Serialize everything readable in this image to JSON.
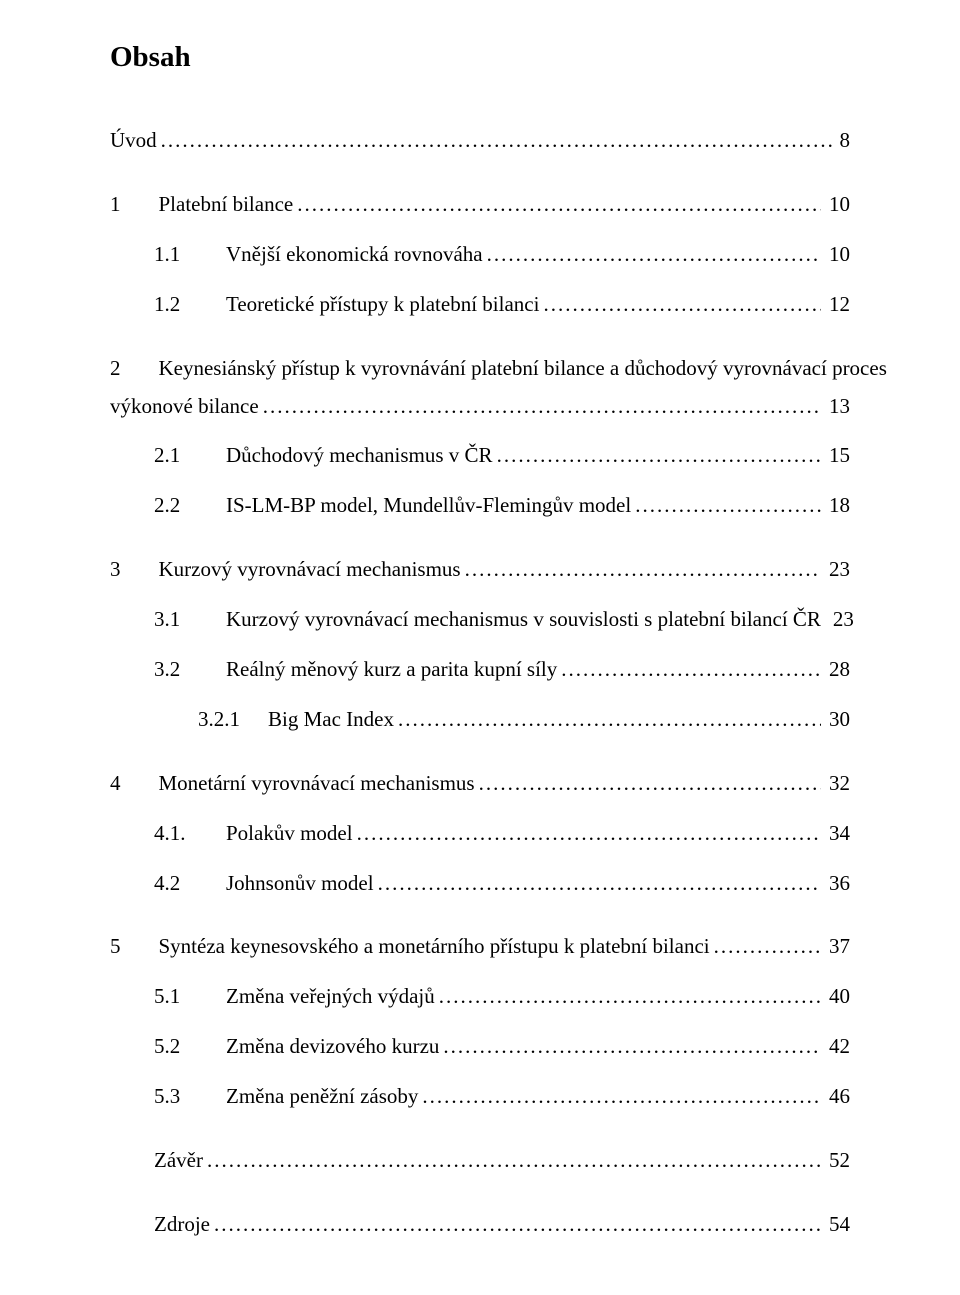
{
  "title": "Obsah",
  "entries": [
    {
      "type": "row",
      "indent": 0,
      "num": "",
      "label": "Úvod",
      "page": "8",
      "nonum": true
    },
    {
      "type": "spacer"
    },
    {
      "type": "row",
      "indent": 0,
      "num": "1",
      "label": "Platební bilance",
      "page": "10"
    },
    {
      "type": "row",
      "indent": 1,
      "num": "1.1",
      "label": "Vnější ekonomická rovnováha",
      "page": "10"
    },
    {
      "type": "row",
      "indent": 1,
      "num": "1.2",
      "label": "Teoretické přístupy k platební bilanci",
      "page": "12"
    },
    {
      "type": "spacer"
    },
    {
      "type": "wrap",
      "indent": 0,
      "num": "2",
      "label": "Keynesiánský přístup k vyrovnávání platební bilance a důchodový vyrovnávací proces"
    },
    {
      "type": "cont",
      "indent": 0,
      "label": "výkonové bilance",
      "page": "13"
    },
    {
      "type": "row",
      "indent": 1,
      "num": "2.1",
      "label": "Důchodový mechanismus v ČR",
      "page": "15"
    },
    {
      "type": "row",
      "indent": 1,
      "num": "2.2",
      "label": "IS-LM-BP model, Mundellův-Flemingův model",
      "page": "18"
    },
    {
      "type": "spacer"
    },
    {
      "type": "row",
      "indent": 0,
      "num": "3",
      "label": "Kurzový vyrovnávací mechanismus",
      "page": "23"
    },
    {
      "type": "row",
      "indent": 1,
      "num": "3.1",
      "label": "Kurzový vyrovnávací mechanismus v souvislosti s platební bilancí ČR",
      "page": "23"
    },
    {
      "type": "row",
      "indent": 1,
      "num": "3.2",
      "label": "Reálný měnový kurz a parita kupní síly",
      "page": "28"
    },
    {
      "type": "row",
      "indent": 2,
      "num": "3.2.1",
      "label": "Big Mac Index",
      "page": "30"
    },
    {
      "type": "spacer"
    },
    {
      "type": "row",
      "indent": 0,
      "num": "4",
      "label": "Monetární vyrovnávací mechanismus",
      "page": "32"
    },
    {
      "type": "row",
      "indent": 1,
      "num": "4.1.",
      "label": "Polakův model",
      "page": "34"
    },
    {
      "type": "row",
      "indent": 1,
      "num": "4.2",
      "label": "Johnsonův model",
      "page": "36"
    },
    {
      "type": "spacer"
    },
    {
      "type": "row",
      "indent": 0,
      "num": "5",
      "label": "Syntéza keynesovského a monetárního přístupu k platební bilanci",
      "page": "37"
    },
    {
      "type": "row",
      "indent": 1,
      "num": "5.1",
      "label": "Změna veřejných výdajů",
      "page": "40"
    },
    {
      "type": "row",
      "indent": 1,
      "num": "5.2",
      "label": "Změna  devizového kurzu",
      "page": "42"
    },
    {
      "type": "row",
      "indent": 1,
      "num": "5.3",
      "label": "Změna peněžní zásoby",
      "page": "46"
    },
    {
      "type": "spacer"
    },
    {
      "type": "row",
      "indent": 1,
      "num": "",
      "label": "Závěr",
      "page": "52",
      "nonum": true
    },
    {
      "type": "spacer"
    },
    {
      "type": "row",
      "indent": 1,
      "num": "",
      "label": "Zdroje",
      "page": "54",
      "nonum": true
    }
  ]
}
